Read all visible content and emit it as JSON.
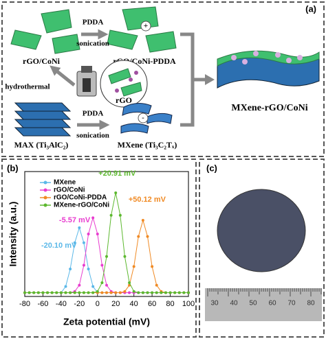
{
  "panel_a": {
    "label": "(a)",
    "step1_top": "PDDA",
    "step1_bottom": "sonication",
    "step2_top": "PDDA",
    "step2_bottom": "sonication",
    "rgo_coni": "rGO/CoNi",
    "rgo_coni_pdda": "rGO/CoNi-PDDA",
    "hydrothermal": "hydrothermal",
    "rgo": "rGO",
    "max": "MAX (Ti₃AlC₂)",
    "mxene": "MXene (Ti₃C₂Tₓ)",
    "product": "MXene-rGO/CoNi",
    "plus": "+",
    "minus": "-"
  },
  "panel_b": {
    "label": "(b)"
  },
  "panel_c": {
    "label": "(c)",
    "ruler_labels": [
      "30",
      "40",
      "50",
      "60",
      "70",
      "80"
    ]
  },
  "chart_data": {
    "type": "line",
    "xlabel": "Zeta potential (mV)",
    "ylabel": "Intensity (a.u.)",
    "x": [
      -80,
      -75,
      -70,
      -65,
      -60,
      -55,
      -50,
      -45,
      -40,
      -35,
      -30,
      -25,
      -20,
      -15,
      -10,
      -5,
      0,
      5,
      10,
      15,
      20,
      25,
      30,
      35,
      40,
      45,
      50,
      55,
      60,
      65,
      70,
      75,
      80,
      85,
      90,
      95,
      100
    ],
    "xlim": [
      -80,
      100
    ],
    "xticks": [
      -80,
      -60,
      -40,
      -20,
      0,
      20,
      40,
      60,
      80,
      100
    ],
    "ylim": [
      0,
      100
    ],
    "grid": false,
    "legend": "upper left",
    "series": [
      {
        "name": "MXene",
        "color": "#5bb8e8",
        "annotation": "-20.10 mV",
        "values": [
          3,
          3,
          3,
          3,
          3,
          3,
          3,
          3,
          3,
          8,
          22,
          43,
          55,
          43,
          22,
          8,
          3,
          3,
          3,
          3,
          3,
          3,
          3,
          3,
          3,
          3,
          3,
          3,
          3,
          3,
          3,
          3,
          3,
          3,
          3,
          3,
          3
        ]
      },
      {
        "name": "rGO/CoNi",
        "color": "#e83ccf",
        "annotation": "-5.57 mV",
        "values": [
          3,
          3,
          3,
          3,
          3,
          3,
          3,
          3,
          3,
          3,
          3,
          4,
          9,
          25,
          50,
          63,
          50,
          25,
          9,
          4,
          3,
          3,
          3,
          3,
          3,
          3,
          3,
          3,
          3,
          3,
          3,
          3,
          3,
          3,
          3,
          3,
          3
        ]
      },
      {
        "name": "rGO/CoNi-PDDA",
        "color": "#f08a24",
        "annotation": "+50.12 mV",
        "values": [
          3,
          3,
          3,
          3,
          3,
          3,
          3,
          3,
          3,
          3,
          3,
          3,
          3,
          3,
          3,
          3,
          3,
          3,
          3,
          3,
          3,
          3,
          4,
          9,
          24,
          48,
          61,
          48,
          24,
          9,
          4,
          3,
          3,
          3,
          3,
          3,
          3
        ]
      },
      {
        "name": "MXene-rGO/CoNi",
        "color": "#5cb82e",
        "annotation": "+20.91 mV",
        "values": [
          3,
          3,
          3,
          3,
          3,
          3,
          3,
          3,
          3,
          3,
          3,
          3,
          3,
          3,
          3,
          3,
          4,
          11,
          32,
          65,
          83,
          65,
          32,
          11,
          4,
          3,
          3,
          3,
          3,
          3,
          3,
          3,
          3,
          3,
          3,
          3,
          3
        ]
      }
    ]
  }
}
